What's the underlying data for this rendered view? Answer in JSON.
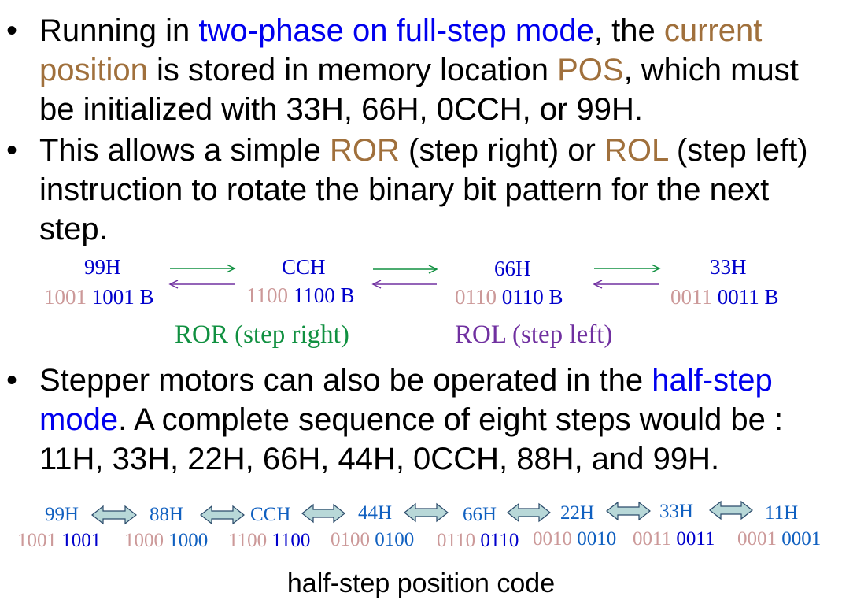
{
  "bullet_char": "•",
  "para1": {
    "t1": "Running in ",
    "t2": "two-phase on full-step mode",
    "t3": ", the ",
    "t4": "current position",
    "t5": " is stored in memory location ",
    "t6": "POS",
    "t7": ", which must be initialized with 33H, 66H, 0CCH, or 99H."
  },
  "para2": {
    "t1": "This allows a simple ",
    "t2": "ROR",
    "t3": " (step right) or ",
    "t4": "ROL",
    "t5": " (step left) instruction to rotate the binary bit pattern for the next step."
  },
  "fullstep": [
    {
      "hex": "99H",
      "bin_hi": "1001",
      "bin_lo": "1001 B"
    },
    {
      "hex": "CCH",
      "bin_hi": "1100",
      "bin_lo": "1100 B"
    },
    {
      "hex": "66H",
      "bin_hi": "0110",
      "bin_lo": "0110 B"
    },
    {
      "hex": "33H",
      "bin_hi": "0011",
      "bin_lo": "0011 B"
    }
  ],
  "ror_label": "ROR (step right)",
  "rol_label": "ROL (step left)",
  "para3": {
    "t1": "Stepper motors can also be operated in the ",
    "t2": "half-step mode",
    "t3": ". A complete sequence of eight steps would be : 11H, 33H, 22H, 66H, 44H, 0CCH, 88H, and 99H."
  },
  "halfstep": [
    {
      "hex": "99H",
      "bin_hi": "1001",
      "bin_lo": "1001"
    },
    {
      "hex": "88H",
      "bin_hi": "1000",
      "bin_lo": "1000"
    },
    {
      "hex": "CCH",
      "bin_hi": "1100",
      "bin_lo": "1100"
    },
    {
      "hex": "44H",
      "bin_hi": "0100",
      "bin_lo": "0100"
    },
    {
      "hex": "66H",
      "bin_hi": "0110",
      "bin_lo": "0110"
    },
    {
      "hex": "22H",
      "bin_hi": "0010",
      "bin_lo": "0010"
    },
    {
      "hex": "33H",
      "bin_hi": "0011",
      "bin_lo": "0011"
    },
    {
      "hex": "11H",
      "bin_hi": "0001",
      "bin_lo": "0001"
    }
  ],
  "caption": "half-step position code",
  "colors": {
    "blue_text": "#0000ee",
    "brown_text": "#a0703c",
    "green_arrow": "#109040",
    "purple_arrow": "#7030a0",
    "double_arrow_fill": "#b8d8d8"
  }
}
